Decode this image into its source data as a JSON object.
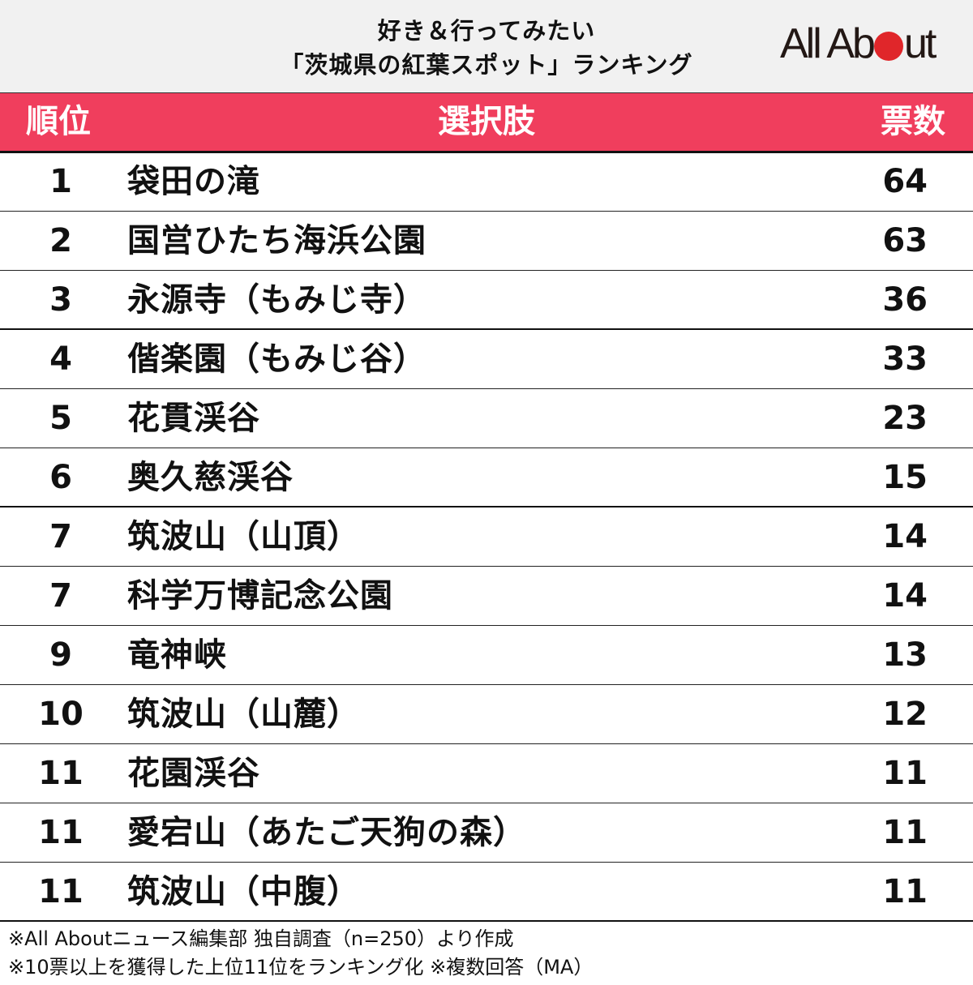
{
  "title": {
    "line1": "好き＆行ってみたい",
    "line2": "「茨城県の紅葉スポット」ランキング"
  },
  "logo": {
    "text_before": "All Ab",
    "text_after": "ut",
    "dot_color": "#e0262a"
  },
  "colors": {
    "header_band": "#f03e5d",
    "title_band": "#f1f1f1"
  },
  "table": {
    "headers": {
      "rank": "順位",
      "choice": "選択肢",
      "votes": "票数"
    },
    "rows": [
      {
        "rank": "1",
        "name": "袋田の滝",
        "votes": "64"
      },
      {
        "rank": "2",
        "name": "国営ひたち海浜公園",
        "votes": "63"
      },
      {
        "rank": "3",
        "name": "永源寺（もみじ寺）",
        "votes": "36"
      },
      {
        "rank": "4",
        "name": "偕楽園（もみじ谷）",
        "votes": "33"
      },
      {
        "rank": "5",
        "name": "花貫渓谷",
        "votes": "23"
      },
      {
        "rank": "6",
        "name": "奥久慈渓谷",
        "votes": "15"
      },
      {
        "rank": "7",
        "name": "筑波山（山頂）",
        "votes": "14"
      },
      {
        "rank": "7",
        "name": "科学万博記念公園",
        "votes": "14"
      },
      {
        "rank": "9",
        "name": "竜神峡",
        "votes": "13"
      },
      {
        "rank": "10",
        "name": "筑波山（山麓）",
        "votes": "12"
      },
      {
        "rank": "11",
        "name": "花園渓谷",
        "votes": "11"
      },
      {
        "rank": "11",
        "name": "愛宕山（あたご天狗の森）",
        "votes": "11"
      },
      {
        "rank": "11",
        "name": "筑波山（中腹）",
        "votes": "11"
      }
    ]
  },
  "footnotes": [
    "※All Aboutニュース編集部 独自調査（n=250）より作成",
    "※10票以上を獲得した上位11位をランキング化 ※複数回答（MA）"
  ]
}
